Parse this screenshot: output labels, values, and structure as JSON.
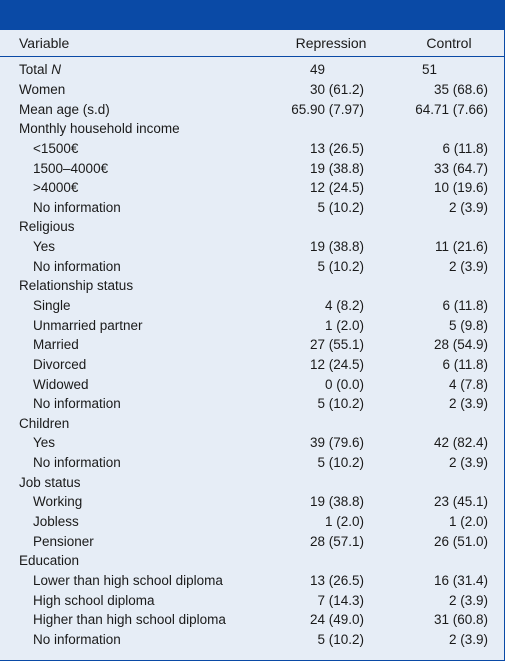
{
  "header": {
    "variable": "Variable",
    "repression": "Repression",
    "control": "Control"
  },
  "rows": [
    {
      "label": "Total ",
      "label_italic": "N",
      "rep": "49",
      "ctl": "51",
      "indent": false,
      "left": true
    },
    {
      "label": "Women",
      "rep": "30 (61.2)",
      "ctl": "35 (68.6)",
      "indent": false
    },
    {
      "label": "Mean age (s.d)",
      "rep": "65.90 (7.97)",
      "ctl": "64.71 (7.66)",
      "indent": false
    },
    {
      "label": "Monthly household income",
      "rep": "",
      "ctl": "",
      "indent": false
    },
    {
      "label": "<1500€",
      "rep": "13 (26.5)",
      "ctl": "6 (11.8)",
      "indent": true
    },
    {
      "label": "1500–4000€",
      "rep": "19 (38.8)",
      "ctl": "33 (64.7)",
      "indent": true
    },
    {
      "label": ">4000€",
      "rep": "12 (24.5)",
      "ctl": "10 (19.6)",
      "indent": true
    },
    {
      "label": "No information",
      "rep": "5 (10.2)",
      "ctl": "2 (3.9)",
      "indent": true
    },
    {
      "label": "Religious",
      "rep": "",
      "ctl": "",
      "indent": false
    },
    {
      "label": "Yes",
      "rep": "19 (38.8)",
      "ctl": "11 (21.6)",
      "indent": true
    },
    {
      "label": "No information",
      "rep": "5 (10.2)",
      "ctl": "2 (3.9)",
      "indent": true
    },
    {
      "label": "Relationship status",
      "rep": "",
      "ctl": "",
      "indent": false
    },
    {
      "label": "Single",
      "rep": "4 (8.2)",
      "ctl": "6 (11.8)",
      "indent": true
    },
    {
      "label": "Unmarried partner",
      "rep": "1 (2.0)",
      "ctl": "5 (9.8)",
      "indent": true
    },
    {
      "label": "Married",
      "rep": "27 (55.1)",
      "ctl": "28 (54.9)",
      "indent": true
    },
    {
      "label": "Divorced",
      "rep": "12 (24.5)",
      "ctl": "6 (11.8)",
      "indent": true
    },
    {
      "label": "Widowed",
      "rep": "0 (0.0)",
      "ctl": "4 (7.8)",
      "indent": true
    },
    {
      "label": "No information",
      "rep": "5 (10.2)",
      "ctl": "2 (3.9)",
      "indent": true
    },
    {
      "label": "Children",
      "rep": "",
      "ctl": "",
      "indent": false
    },
    {
      "label": "Yes",
      "rep": "39 (79.6)",
      "ctl": "42 (82.4)",
      "indent": true
    },
    {
      "label": "No information",
      "rep": "5 (10.2)",
      "ctl": "2 (3.9)",
      "indent": true
    },
    {
      "label": "Job status",
      "rep": "",
      "ctl": "",
      "indent": false
    },
    {
      "label": "Working",
      "rep": "19 (38.8)",
      "ctl": "23 (45.1)",
      "indent": true
    },
    {
      "label": "Jobless",
      "rep": "1 (2.0)",
      "ctl": "1 (2.0)",
      "indent": true
    },
    {
      "label": "Pensioner",
      "rep": "28 (57.1)",
      "ctl": "26 (51.0)",
      "indent": true
    },
    {
      "label": "Education",
      "rep": "",
      "ctl": "",
      "indent": false
    },
    {
      "label": "Lower than high school diploma",
      "rep": "13 (26.5)",
      "ctl": "16 (31.4)",
      "indent": true
    },
    {
      "label": "High school diploma",
      "rep": "7 (14.3)",
      "ctl": "2 (3.9)",
      "indent": true
    },
    {
      "label": "Higher than high school diploma",
      "rep": "24 (49.0)",
      "ctl": "31 (60.8)",
      "indent": true
    },
    {
      "label": "No information",
      "rep": "5 (10.2)",
      "ctl": "2 (3.9)",
      "indent": true
    }
  ],
  "colors": {
    "accent": "#0a4aa6",
    "background": "#e6edf6"
  }
}
